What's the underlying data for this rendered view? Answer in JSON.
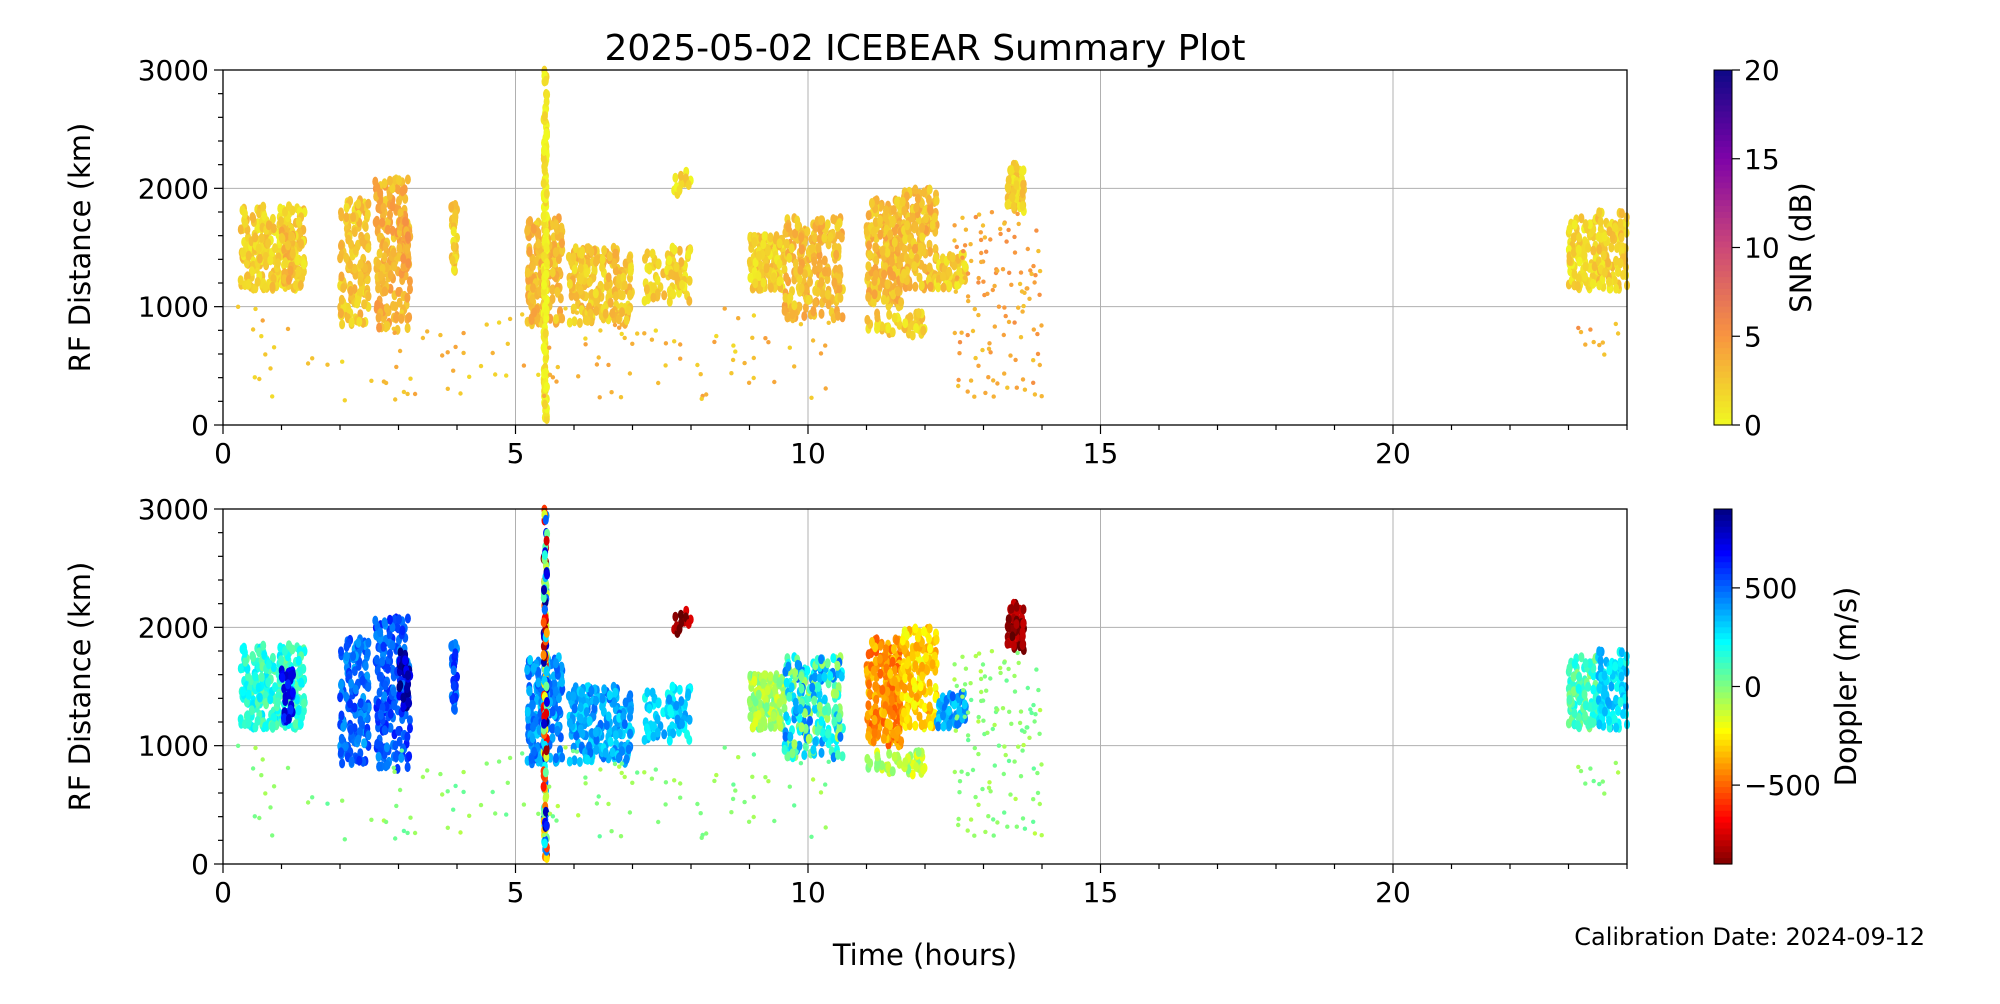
{
  "title": "2025-05-02 ICEBEAR Summary Plot",
  "footer": {
    "calibration": "Calibration Date: 2024-09-12"
  },
  "chart_data": [
    {
      "type": "scatter",
      "panel": "snr",
      "xlabel": "Time (hours)",
      "ylabel": "RF Distance (km)",
      "xlim": [
        0,
        24
      ],
      "ylim": [
        0,
        3000
      ],
      "xticks": [
        0,
        5,
        10,
        15,
        20
      ],
      "xtick_labels": [
        "0",
        "5",
        "10",
        "15",
        "20"
      ],
      "yticks": [
        0,
        1000,
        2000,
        3000
      ],
      "ytick_labels": [
        "0",
        "1000",
        "2000",
        "3000"
      ],
      "grid": true,
      "colorbar": {
        "label": "SNR (dB)",
        "cmap": "plasma_r",
        "range": [
          0,
          20
        ],
        "ticks": [
          0,
          5,
          10,
          15,
          20
        ],
        "tick_labels": [
          "0",
          "5",
          "10",
          "15",
          "20"
        ]
      },
      "color_field": "snr"
    },
    {
      "type": "scatter",
      "panel": "doppler",
      "xlabel": "Time (hours)",
      "ylabel": "RF Distance (km)",
      "xlim": [
        0,
        24
      ],
      "ylim": [
        0,
        3000
      ],
      "xticks": [
        0,
        5,
        10,
        15,
        20
      ],
      "xtick_labels": [
        "0",
        "5",
        "10",
        "15",
        "20"
      ],
      "yticks": [
        0,
        1000,
        2000,
        3000
      ],
      "ytick_labels": [
        "0",
        "1000",
        "2000",
        "3000"
      ],
      "grid": true,
      "colorbar": {
        "label": "Doppler (m/s)",
        "cmap": "jet_r",
        "range": [
          -900,
          900
        ],
        "ticks": [
          -500,
          0,
          500
        ],
        "tick_labels": [
          "−500",
          "0",
          "500"
        ]
      },
      "color_field": "doppler"
    }
  ],
  "clusters": [
    {
      "t": [
        0.3,
        1.4
      ],
      "d": [
        1150,
        1850
      ],
      "snr": 2,
      "doppler": 150,
      "n": 260
    },
    {
      "t": [
        1.0,
        1.2
      ],
      "d": [
        1200,
        1650
      ],
      "snr": 3,
      "doppler": 650,
      "n": 40
    },
    {
      "t": [
        2.0,
        2.5
      ],
      "d": [
        850,
        1900
      ],
      "snr": 2.5,
      "doppler": 480,
      "n": 160
    },
    {
      "t": [
        2.6,
        3.2
      ],
      "d": [
        800,
        2080
      ],
      "snr": 3.5,
      "doppler": 520,
      "n": 180
    },
    {
      "t": [
        3.0,
        3.2
      ],
      "d": [
        1300,
        1800
      ],
      "snr": 4,
      "doppler": 800,
      "n": 40
    },
    {
      "t": [
        3.9,
        4.0
      ],
      "d": [
        1300,
        1900
      ],
      "snr": 2,
      "doppler": 520,
      "n": 30
    },
    {
      "t": [
        5.2,
        5.8
      ],
      "d": [
        850,
        1750
      ],
      "snr": 3,
      "doppler": 420,
      "n": 200
    },
    {
      "t": [
        5.48,
        5.54
      ],
      "d": [
        30,
        3000
      ],
      "snr": 0.5,
      "doppler": 0,
      "spread": 900,
      "n": 160
    },
    {
      "t": [
        5.9,
        7.0
      ],
      "d": [
        850,
        1500
      ],
      "snr": 2.5,
      "doppler": 380,
      "n": 220
    },
    {
      "t": [
        7.2,
        8.0
      ],
      "d": [
        1000,
        1500
      ],
      "snr": 2,
      "doppler": 300,
      "n": 80
    },
    {
      "t": [
        7.7,
        8.0
      ],
      "d": [
        1950,
        2150
      ],
      "snr": 1.5,
      "doppler": -850,
      "n": 15
    },
    {
      "t": [
        9.0,
        9.6
      ],
      "d": [
        1150,
        1600
      ],
      "snr": 2,
      "doppler": -60,
      "n": 150
    },
    {
      "t": [
        9.6,
        10.6
      ],
      "d": [
        900,
        1750
      ],
      "snr": 3,
      "doppler": 200,
      "spread": 300,
      "n": 220
    },
    {
      "t": [
        11.0,
        11.6
      ],
      "d": [
        1000,
        1900
      ],
      "snr": 3,
      "doppler": -420,
      "n": 220
    },
    {
      "t": [
        11.6,
        12.2
      ],
      "d": [
        1150,
        2000
      ],
      "snr": 3,
      "doppler": -300,
      "n": 160
    },
    {
      "t": [
        11.0,
        12.0
      ],
      "d": [
        750,
        950
      ],
      "snr": 2,
      "doppler": -100,
      "n": 50
    },
    {
      "t": [
        12.2,
        12.7
      ],
      "d": [
        1150,
        1450
      ],
      "snr": 2,
      "doppler": 400,
      "n": 50
    },
    {
      "t": [
        13.4,
        13.7
      ],
      "d": [
        1800,
        2200
      ],
      "snr": 2,
      "doppler": -850,
      "n": 60
    },
    {
      "t": [
        12.5,
        14.0
      ],
      "d": [
        200,
        1800
      ],
      "snr": 4,
      "doppler": -30,
      "sparse": true,
      "n": 120
    },
    {
      "t": [
        0.2,
        10.5
      ],
      "d": [
        200,
        1000
      ],
      "snr": 3,
      "doppler": -20,
      "sparse": true,
      "n": 120
    },
    {
      "t": [
        23.0,
        23.5
      ],
      "d": [
        1150,
        1750
      ],
      "snr": 1.5,
      "doppler": 100,
      "n": 100
    },
    {
      "t": [
        23.5,
        24.0
      ],
      "d": [
        1150,
        1800
      ],
      "snr": 2,
      "doppler": 280,
      "n": 100
    },
    {
      "t": [
        23.0,
        24.0
      ],
      "d": [
        580,
        880
      ],
      "snr": 4,
      "doppler": -20,
      "sparse": true,
      "n": 10
    }
  ]
}
